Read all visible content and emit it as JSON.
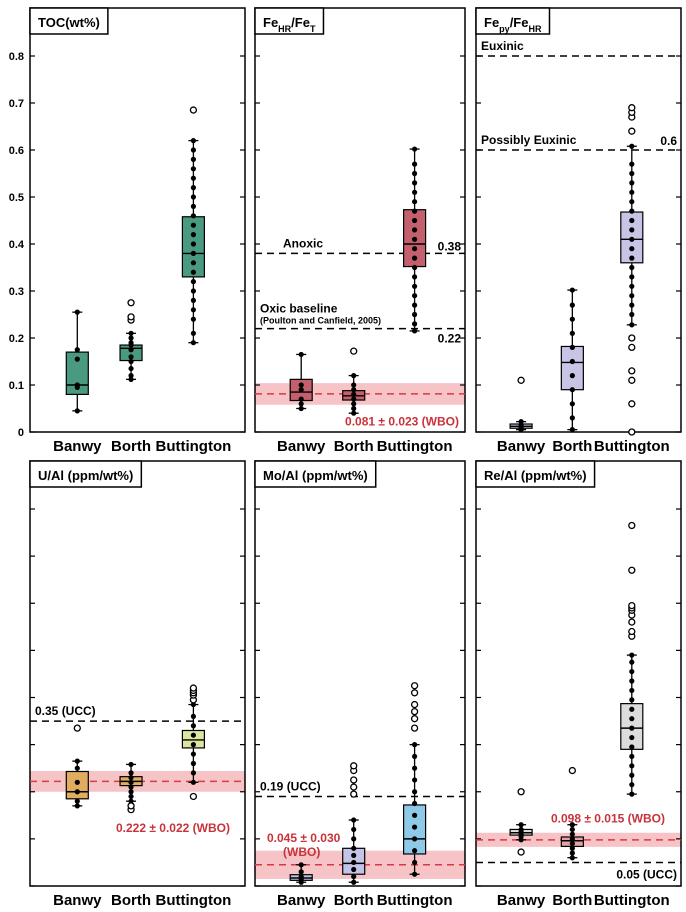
{
  "colors": {
    "reference_band": "#f4b8bd",
    "reference_line": "#d93a43",
    "threshold_line": "#000000",
    "wbo_text": "#c8323a"
  },
  "chart_data": [
    {
      "type": "box",
      "title": "TOC(wt%)",
      "ylim": [
        0,
        0.8
      ],
      "yticks": [
        "0",
        "0.1",
        "0.2",
        "0.3",
        "0.4",
        "0.5",
        "0.6",
        "0.7",
        "0.8"
      ],
      "categories": [
        "Banwy",
        "Borth",
        "Buttington"
      ],
      "fill": "#4a9a82",
      "boxes": [
        {
          "q1": 0.08,
          "median": 0.1,
          "q3": 0.17,
          "low": 0.045,
          "high": 0.255,
          "points": [
            0.045,
            0.095,
            0.1,
            0.155,
            0.175,
            0.255
          ],
          "outliers": []
        },
        {
          "q1": 0.152,
          "median": 0.178,
          "q3": 0.185,
          "low": 0.112,
          "high": 0.21,
          "points": [
            0.112,
            0.12,
            0.135,
            0.15,
            0.16,
            0.175,
            0.185,
            0.19,
            0.2,
            0.21
          ],
          "outliers": [
            0.238,
            0.245,
            0.275
          ]
        },
        {
          "q1": 0.33,
          "median": 0.38,
          "q3": 0.458,
          "low": 0.19,
          "high": 0.62,
          "points": [
            0.19,
            0.21,
            0.24,
            0.26,
            0.28,
            0.3,
            0.32,
            0.34,
            0.36,
            0.38,
            0.4,
            0.42,
            0.44,
            0.46,
            0.48,
            0.5,
            0.52,
            0.54,
            0.56,
            0.58,
            0.6,
            0.62
          ],
          "outliers": [
            0.685
          ]
        }
      ],
      "band": null,
      "lines": []
    },
    {
      "type": "box",
      "title": "FeHR/FeT",
      "title_rich": [
        [
          "Fe",
          ""
        ],
        [
          "HR",
          "sub"
        ],
        [
          "/Fe",
          ""
        ],
        [
          "T",
          "sub"
        ]
      ],
      "ylim": [
        0,
        0.8
      ],
      "categories": [
        "Banwy",
        "Borth",
        "Buttington"
      ],
      "fill": "#c4606e",
      "boxes": [
        {
          "q1": 0.067,
          "median": 0.085,
          "q3": 0.112,
          "low": 0.05,
          "high": 0.165,
          "points": [
            0.05,
            0.06,
            0.07,
            0.09,
            0.1,
            0.165
          ],
          "outliers": []
        },
        {
          "q1": 0.068,
          "median": 0.077,
          "q3": 0.088,
          "low": 0.04,
          "high": 0.12,
          "points": [
            0.04,
            0.05,
            0.06,
            0.07,
            0.08,
            0.09,
            0.1,
            0.12
          ],
          "outliers": [
            0.172
          ]
        },
        {
          "q1": 0.352,
          "median": 0.4,
          "q3": 0.473,
          "low": 0.215,
          "high": 0.602,
          "points": [
            0.215,
            0.23,
            0.25,
            0.27,
            0.29,
            0.31,
            0.33,
            0.35,
            0.37,
            0.39,
            0.41,
            0.43,
            0.45,
            0.47,
            0.49,
            0.51,
            0.53,
            0.55,
            0.57,
            0.602
          ],
          "outliers": []
        }
      ],
      "band": {
        "center": 0.081,
        "half": 0.023,
        "label": "0.081 ± 0.023 (WBO)"
      },
      "lines": [
        {
          "y": 0.38,
          "label_left": "Anoxic",
          "label_right": "0.38"
        },
        {
          "y": 0.22,
          "label_left": "Oxic baseline",
          "sublabel": "(Poulton and Canfield, 2005)",
          "label_right": "0.22"
        }
      ]
    },
    {
      "type": "box",
      "title": "Fepy/FeHR",
      "title_rich": [
        [
          "Fe",
          ""
        ],
        [
          "py",
          "sub"
        ],
        [
          "/Fe",
          ""
        ],
        [
          "HR",
          "sub"
        ]
      ],
      "ylim": [
        0,
        0.8
      ],
      "categories": [
        "Banwy",
        "Borth",
        "Buttington"
      ],
      "fill": "#c8c4e6",
      "boxes": [
        {
          "q1": 0.008,
          "median": 0.012,
          "q3": 0.017,
          "low": 0.005,
          "high": 0.022,
          "points": [
            0.005,
            0.01,
            0.015,
            0.022
          ],
          "outliers": [
            0.11
          ]
        },
        {
          "q1": 0.09,
          "median": 0.148,
          "q3": 0.182,
          "low": 0.005,
          "high": 0.302,
          "points": [
            0.005,
            0.03,
            0.06,
            0.09,
            0.12,
            0.15,
            0.18,
            0.21,
            0.24,
            0.27,
            0.302
          ],
          "outliers": []
        },
        {
          "q1": 0.36,
          "median": 0.41,
          "q3": 0.468,
          "low": 0.228,
          "high": 0.608,
          "points": [
            0.228,
            0.25,
            0.27,
            0.29,
            0.31,
            0.33,
            0.35,
            0.37,
            0.39,
            0.41,
            0.43,
            0.45,
            0.47,
            0.49,
            0.51,
            0.53,
            0.55,
            0.57,
            0.608
          ],
          "outliers": [
            0.0,
            0.06,
            0.11,
            0.13,
            0.18,
            0.2,
            0.64,
            0.67,
            0.68,
            0.69
          ]
        }
      ],
      "band": null,
      "lines": [
        {
          "y": 0.8,
          "label_left": "Euxinic",
          "label_right": ""
        },
        {
          "y": 0.6,
          "label_left": "Possibly Euxinic",
          "label_right": "0.6"
        }
      ]
    },
    {
      "type": "box",
      "title": "U/Al (ppm/wt%)",
      "ylim": [
        0,
        0.8
      ],
      "categories": [
        "Banwy",
        "Borth",
        "Buttington"
      ],
      "fill": "#e0ad60",
      "boxes": [
        {
          "q1": 0.185,
          "median": 0.2,
          "q3": 0.243,
          "low": 0.17,
          "high": 0.265,
          "points": [
            0.17,
            0.18,
            0.2,
            0.22,
            0.25,
            0.265
          ],
          "outliers": [
            0.335
          ]
        },
        {
          "q1": 0.213,
          "median": 0.222,
          "q3": 0.232,
          "low": 0.18,
          "high": 0.258,
          "points": [
            0.18,
            0.19,
            0.2,
            0.21,
            0.22,
            0.23,
            0.24,
            0.258
          ],
          "outliers": [
            0.162,
            0.17
          ]
        },
        {
          "q1": 0.293,
          "median": 0.31,
          "q3": 0.33,
          "low": 0.22,
          "high": 0.385,
          "points": [
            0.22,
            0.24,
            0.26,
            0.28,
            0.3,
            0.32,
            0.34,
            0.36,
            0.385
          ],
          "outliers": [
            0.19,
            0.395,
            0.405,
            0.41,
            0.415,
            0.42
          ]
        }
      ],
      "band": {
        "center": 0.222,
        "half": 0.022,
        "label": "0.222 ± 0.022 (WBO)"
      },
      "lines": [
        {
          "y": 0.35,
          "label_left": "0.35 (UCC)",
          "label_right": ""
        }
      ],
      "box_fill_override": [
        null,
        null,
        "#dde5a0"
      ]
    },
    {
      "type": "box",
      "title": "Mo/Al (ppm/wt%)",
      "ylim": [
        0,
        0.8
      ],
      "categories": [
        "Banwy",
        "Borth",
        "Buttington"
      ],
      "fill": "#c4c4e8",
      "boxes": [
        {
          "q1": 0.012,
          "median": 0.017,
          "q3": 0.024,
          "low": 0.008,
          "high": 0.045,
          "points": [
            0.008,
            0.015,
            0.02,
            0.03,
            0.045
          ],
          "outliers": []
        },
        {
          "q1": 0.025,
          "median": 0.048,
          "q3": 0.08,
          "low": 0.008,
          "high": 0.14,
          "points": [
            0.008,
            0.02,
            0.035,
            0.05,
            0.065,
            0.08,
            0.1,
            0.12,
            0.14
          ],
          "outliers": [
            0.195,
            0.21,
            0.225,
            0.245,
            0.255
          ]
        },
        {
          "q1": 0.068,
          "median": 0.1,
          "q3": 0.172,
          "low": 0.025,
          "high": 0.3,
          "points": [
            0.025,
            0.05,
            0.075,
            0.1,
            0.125,
            0.15,
            0.175,
            0.2,
            0.225,
            0.25,
            0.275,
            0.3
          ],
          "outliers": [
            0.335,
            0.355,
            0.37,
            0.385,
            0.41,
            0.425
          ]
        }
      ],
      "band": {
        "center": 0.045,
        "half": 0.03,
        "label": "0.045 ± 0.030",
        "label2": "(WBO)"
      },
      "lines": [
        {
          "y": 0.19,
          "label_left": "0.19 (UCC)",
          "label_right": ""
        }
      ],
      "box_fill_override": [
        null,
        null,
        "#8ecae8"
      ]
    },
    {
      "type": "box",
      "title": "Re/Al (ppm/wt%)",
      "ylim": [
        0,
        0.8
      ],
      "categories": [
        "Banwy",
        "Borth",
        "Buttington"
      ],
      "fill": "#e6a0a6",
      "boxes": [
        {
          "q1": 0.108,
          "median": 0.113,
          "q3": 0.12,
          "low": 0.098,
          "high": 0.13,
          "points": [
            0.098,
            0.105,
            0.11,
            0.115,
            0.12,
            0.13
          ],
          "outliers": [
            0.072,
            0.2
          ]
        },
        {
          "q1": 0.084,
          "median": 0.096,
          "q3": 0.104,
          "low": 0.06,
          "high": 0.13,
          "points": [
            0.06,
            0.07,
            0.08,
            0.09,
            0.1,
            0.11,
            0.12,
            0.13
          ],
          "outliers": [
            0.245
          ]
        },
        {
          "q1": 0.29,
          "median": 0.335,
          "q3": 0.387,
          "low": 0.195,
          "high": 0.49,
          "points": [
            0.195,
            0.215,
            0.235,
            0.255,
            0.275,
            0.295,
            0.315,
            0.335,
            0.355,
            0.375,
            0.395,
            0.415,
            0.435,
            0.455,
            0.475,
            0.49
          ],
          "outliers": [
            0.53,
            0.54,
            0.56,
            0.575,
            0.585,
            0.59,
            0.595,
            0.67,
            0.765
          ]
        }
      ],
      "band": {
        "center": 0.098,
        "half": 0.015,
        "label": "0.098 ± 0.015 (WBO)"
      },
      "lines": [
        {
          "y": 0.05,
          "label_left": "",
          "label_right": "0.05 (UCC)"
        }
      ],
      "box_fill_override": [
        "#e0e0e0",
        null,
        "#dcdcdc"
      ]
    }
  ]
}
